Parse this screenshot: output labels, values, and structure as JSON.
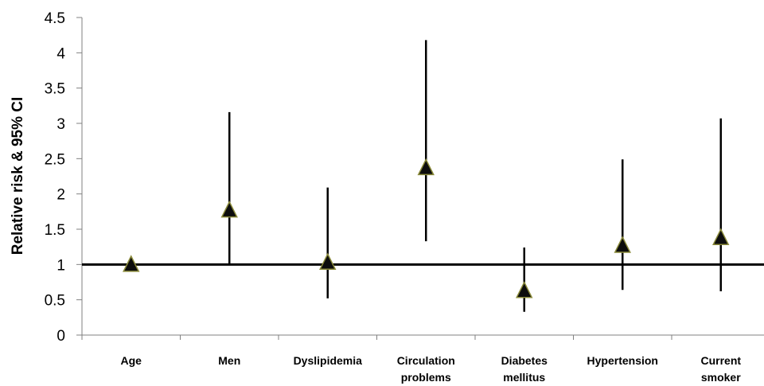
{
  "chart_data": {
    "type": "scatter",
    "title": "",
    "xlabel": "",
    "ylabel": "Relative risk & 95% CI",
    "ylim": [
      0,
      4.5
    ],
    "y_ticks": [
      "0",
      "0.5",
      "1",
      "1.5",
      "2",
      "2.5",
      "3",
      "3.5",
      "4",
      "4.5"
    ],
    "grid": false,
    "reference_line": 1,
    "marker": "triangle",
    "categories": [
      {
        "lines": [
          "Age"
        ]
      },
      {
        "lines": [
          "Men"
        ]
      },
      {
        "lines": [
          "Dyslipidemia"
        ]
      },
      {
        "lines": [
          "Circulation",
          "problems"
        ]
      },
      {
        "lines": [
          "Diabetes",
          "mellitus"
        ]
      },
      {
        "lines": [
          "Hypertension"
        ]
      },
      {
        "lines": [
          "Current",
          "smoker"
        ]
      }
    ],
    "series": [
      {
        "values": [
          1.0,
          1.77,
          1.03,
          2.37,
          0.63,
          1.27,
          1.38
        ],
        "ci_lower": [
          1.0,
          1.0,
          0.52,
          1.33,
          0.33,
          0.64,
          0.62
        ],
        "ci_upper": [
          1.0,
          3.16,
          2.09,
          4.18,
          1.24,
          2.49,
          3.07
        ]
      }
    ],
    "colors": {
      "marker_fill": "#0d0d0d",
      "marker_stroke": "#8a8a3a",
      "error_bar": "#000000",
      "reference_line": "#000000",
      "axis": "#808080"
    }
  }
}
